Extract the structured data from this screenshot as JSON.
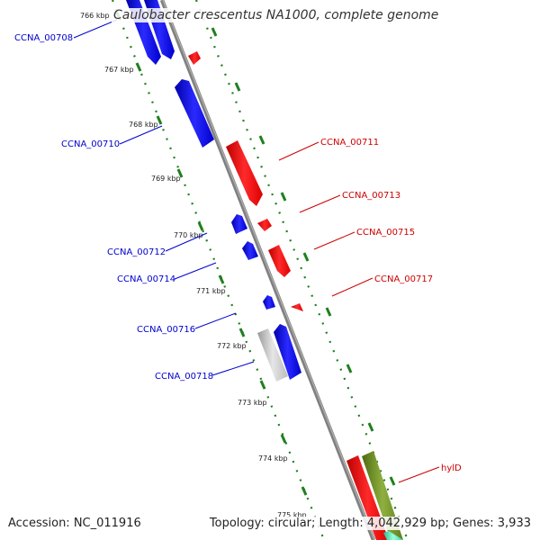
{
  "title": "Caulobacter crescentus NA1000, complete genome",
  "footer": {
    "accession": "Accession: NC_011916",
    "topology": "Topology: circular; Length: 4,042,929 bp; Genes: 3,933"
  },
  "colors": {
    "forward_gene": "#ff0000",
    "reverse_gene": "#0000ee",
    "pseudo_gene": "#c0c0c0",
    "rna_gene": "#6b8e23",
    "axis": "#808080",
    "tick_dots": "#1f7f1f",
    "forward_label": "#cc0000",
    "reverse_label": "#0000cc"
  },
  "kbp_ticks": [
    "766 kbp",
    "767 kbp",
    "768 kbp",
    "769 kbp",
    "770 kbp",
    "771 kbp",
    "772 kbp",
    "773 kbp",
    "774 kbp",
    "775 kbp"
  ],
  "reverse_labels": [
    "CCNA_00708",
    "CCNA_00710",
    "CCNA_00712",
    "CCNA_00714",
    "CCNA_00716",
    "CCNA_00718"
  ],
  "forward_labels": [
    "CCNA_00711",
    "CCNA_00713",
    "CCNA_00715",
    "CCNA_00717",
    "hylD"
  ]
}
